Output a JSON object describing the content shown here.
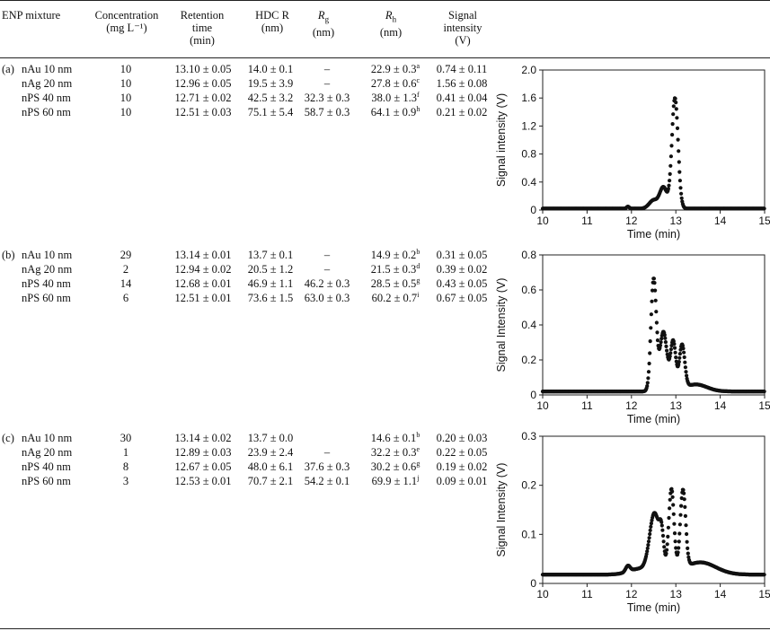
{
  "headers": {
    "enp": "ENP mixture",
    "conc": [
      "Concentration",
      "(mg L⁻¹)"
    ],
    "ret": [
      "Retention",
      "time",
      "(min)"
    ],
    "hdc": [
      "HDC R",
      "(nm)"
    ],
    "rg": [
      "R",
      "g",
      "(nm)"
    ],
    "rh": [
      "R",
      "h",
      "(nm)"
    ],
    "sig": [
      "Signal",
      "intensity",
      "(V)"
    ]
  },
  "sections": [
    {
      "label": "(a)",
      "rows": [
        {
          "name": "nAu 10 nm",
          "conc": "10",
          "ret": "13.10 ± 0.05",
          "hdc": "14.0 ± 0.1",
          "rg": "–",
          "rh": "22.9 ± 0.3",
          "rh_sup": "a",
          "sig": "0.74 ± 0.11"
        },
        {
          "name": "nAg 20 nm",
          "conc": "10",
          "ret": "12.96 ± 0.05",
          "hdc": "19.5 ± 3.9",
          "rg": "–",
          "rh": "27.8 ± 0.6",
          "rh_sup": "c",
          "sig": "1.56 ± 0.08"
        },
        {
          "name": "nPS 40 nm",
          "conc": "10",
          "ret": "12.71 ± 0.02",
          "hdc": "42.5 ± 3.2",
          "rg": "32.3 ± 0.3",
          "rh": "38.0 ± 1.3",
          "rh_sup": "f",
          "sig": "0.41 ± 0.04"
        },
        {
          "name": "nPS 60 nm",
          "conc": "10",
          "ret": "12.51 ± 0.03",
          "hdc": "75.1 ± 5.4",
          "rg": "58.7 ± 0.3",
          "rh": "64.1 ± 0.9",
          "rh_sup": "h",
          "sig": "0.21 ± 0.02"
        }
      ]
    },
    {
      "label": "(b)",
      "rows": [
        {
          "name": "nAu 10 nm",
          "conc": "29",
          "ret": "13.14 ± 0.01",
          "hdc": "13.7 ± 0.1",
          "rg": "–",
          "rh": "14.9 ± 0.2",
          "rh_sup": "b",
          "sig": "0.31 ± 0.05"
        },
        {
          "name": "nAg 20 nm",
          "conc": "2",
          "ret": "12.94 ± 0.02",
          "hdc": "20.5 ± 1.2",
          "rg": "–",
          "rh": "21.5 ± 0.3",
          "rh_sup": "d",
          "sig": "0.39 ± 0.02"
        },
        {
          "name": "nPS 40 nm",
          "conc": "14",
          "ret": "12.68 ± 0.01",
          "hdc": "46.9 ± 1.1",
          "rg": "46.2 ± 0.3",
          "rh": "28.5 ± 0.5",
          "rh_sup": "g",
          "sig": "0.43 ± 0.05"
        },
        {
          "name": "nPS 60 nm",
          "conc": "6",
          "ret": "12.51 ± 0.01",
          "hdc": "73.6 ± 1.5",
          "rg": "63.0 ± 0.3",
          "rh": "60.2 ± 0.7",
          "rh_sup": "i",
          "sig": "0.67 ± 0.05"
        }
      ]
    },
    {
      "label": "(c)",
      "rows": [
        {
          "name": "nAu 10 nm",
          "conc": "30",
          "ret": "13.14 ± 0.02",
          "hdc": "13.7 ± 0.0",
          "rg": "",
          "rh": "14.6 ± 0.1",
          "rh_sup": "b",
          "sig": "0.20 ± 0.03"
        },
        {
          "name": "nAg 20 nm",
          "conc": "1",
          "ret": "12.89 ± 0.03",
          "hdc": "23.9 ± 2.4",
          "rg": "–",
          "rh": "32.2 ± 0.3",
          "rh_sup": "e",
          "sig": "0.22 ± 0.05"
        },
        {
          "name": "nPS 40 nm",
          "conc": "8",
          "ret": "12.67 ± 0.05",
          "hdc": "48.0 ± 6.1",
          "rg": "37.6 ± 0.3",
          "rh": "30.2 ± 0.6",
          "rh_sup": "g",
          "sig": "0.19 ± 0.02"
        },
        {
          "name": "nPS 60 nm",
          "conc": "3",
          "ret": "12.53 ± 0.01",
          "hdc": "70.7 ± 2.1",
          "rg": "54.2 ± 0.1",
          "rh": "69.9 ± 1.1",
          "rh_sup": "j",
          "sig": "0.09 ± 0.01"
        }
      ]
    }
  ],
  "chart_data": [
    {
      "type": "scatter",
      "xlabel": "Time (min)",
      "ylabel": "Signal intensity (V)",
      "xlim": [
        10,
        15
      ],
      "ylim": [
        0,
        2.0
      ],
      "xticks": [
        "10",
        "11",
        "12",
        "13",
        "14",
        "15"
      ],
      "yticks": [
        "0",
        "0.4",
        "0.8",
        "1.2",
        "1.6",
        "2.0"
      ],
      "baseline": 0.02,
      "peaks": [
        [
          11.92,
          0.03,
          0.03
        ],
        [
          12.5,
          0.12,
          0.1
        ],
        [
          12.72,
          0.3,
          0.08
        ],
        [
          12.98,
          1.58,
          0.07
        ]
      ]
    },
    {
      "type": "scatter",
      "xlabel": "Time (min)",
      "ylabel": "Signal Intensity (V)",
      "xlim": [
        10,
        15
      ],
      "ylim": [
        0,
        0.8
      ],
      "xticks": [
        "10",
        "11",
        "12",
        "13",
        "14",
        "15"
      ],
      "yticks": [
        "0",
        "0.2",
        "0.4",
        "0.6",
        "0.8"
      ],
      "baseline": 0.02,
      "peaks": [
        [
          12.5,
          0.64,
          0.06
        ],
        [
          12.72,
          0.34,
          0.08
        ],
        [
          12.94,
          0.28,
          0.06
        ],
        [
          13.14,
          0.25,
          0.06
        ],
        [
          13.45,
          0.04,
          0.25
        ]
      ]
    },
    {
      "type": "scatter",
      "xlabel": "Time (min)",
      "ylabel": "Signal Intensity (V)",
      "xlim": [
        10,
        15
      ],
      "ylim": [
        0,
        0.3
      ],
      "xticks": [
        "10",
        "11",
        "12",
        "13",
        "14",
        "15"
      ],
      "yticks": [
        "0",
        "0.1",
        "0.2",
        "0.3"
      ],
      "baseline": 0.018,
      "peaks": [
        [
          11.92,
          0.012,
          0.05
        ],
        [
          12.2,
          0.012,
          0.25
        ],
        [
          12.52,
          0.12,
          0.11
        ],
        [
          12.68,
          0.06,
          0.05
        ],
        [
          12.9,
          0.17,
          0.06
        ],
        [
          13.16,
          0.16,
          0.06
        ],
        [
          13.55,
          0.025,
          0.35
        ]
      ]
    }
  ]
}
